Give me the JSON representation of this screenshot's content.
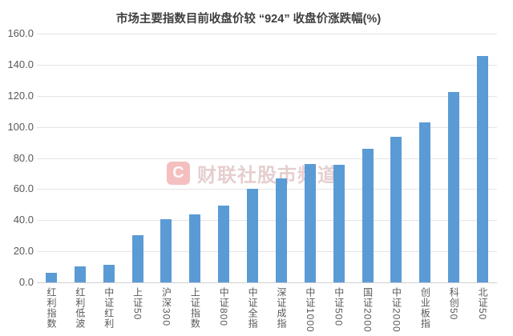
{
  "chart_data": {
    "type": "bar",
    "title": "市场主要指数目前收盘价较 “924” 收盘价涨跌幅(%)",
    "categories": [
      "红利指数",
      "红利低波",
      "中证红利",
      "上证50",
      "沪深300",
      "上证指数",
      "中证800",
      "中证全指",
      "深证成指",
      "中证1000",
      "中证500",
      "国证2000",
      "中证2000",
      "创业板指",
      "科创50",
      "北证50"
    ],
    "values": [
      6.0,
      10.5,
      11.5,
      30.5,
      40.5,
      43.5,
      49.5,
      60.0,
      67.0,
      76.0,
      75.5,
      86.0,
      93.5,
      103.0,
      122.5,
      145.5
    ],
    "xlabel": "",
    "ylabel": "",
    "ylim": [
      0,
      160
    ],
    "ytick_step": 20,
    "ytick_format_decimals": 1,
    "grid": true,
    "legend_position": "none",
    "bar_color": "#5B9BD5",
    "gridline_color": "#E4E4E4",
    "axis_text_color": "#595959",
    "title_color": "#3F3F3F"
  },
  "watermark": {
    "logo_letter": "C",
    "text": "财联社股市频道",
    "logo_color": "#E06060"
  }
}
